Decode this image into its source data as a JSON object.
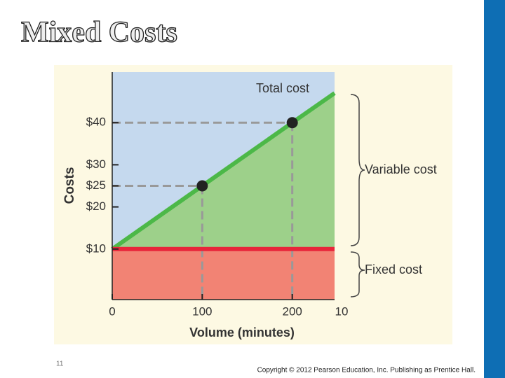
{
  "title": "Mixed Costs",
  "slide_number": "11",
  "copyright": "Copyright © 2012 Pearson Education, Inc. Publishing as Prentice Hall.",
  "chart_data": {
    "type": "line",
    "x_label": "Volume (minutes)",
    "y_label": "Costs",
    "xlim": [
      0,
      247
    ],
    "ylim": [
      -2,
      52
    ],
    "xticks": [
      0,
      100,
      200
    ],
    "yticks": [
      {
        "value": 10,
        "label": "$10"
      },
      {
        "value": 20,
        "label": "$20"
      },
      {
        "value": 25,
        "label": "$25"
      },
      {
        "value": 30,
        "label": "$30"
      },
      {
        "value": 40,
        "label": "$40"
      }
    ],
    "series": [
      {
        "name": "Total cost",
        "color": "#4cb848",
        "area_color": "#9dd08a",
        "x": [
          0,
          100,
          200,
          247
        ],
        "values": [
          10,
          25,
          40,
          47
        ]
      },
      {
        "name": "Fixed cost",
        "color": "#e8253a",
        "area_color": "#f28374",
        "x": [
          0,
          247
        ],
        "values": [
          10,
          10
        ]
      }
    ],
    "points": {
      "color": "#222222",
      "x": [
        100,
        200
      ],
      "values": [
        25,
        40
      ]
    },
    "background_color": "#c5d9ee",
    "variable_cost_label": "Variable cost",
    "cropped_tick_label": "10"
  }
}
